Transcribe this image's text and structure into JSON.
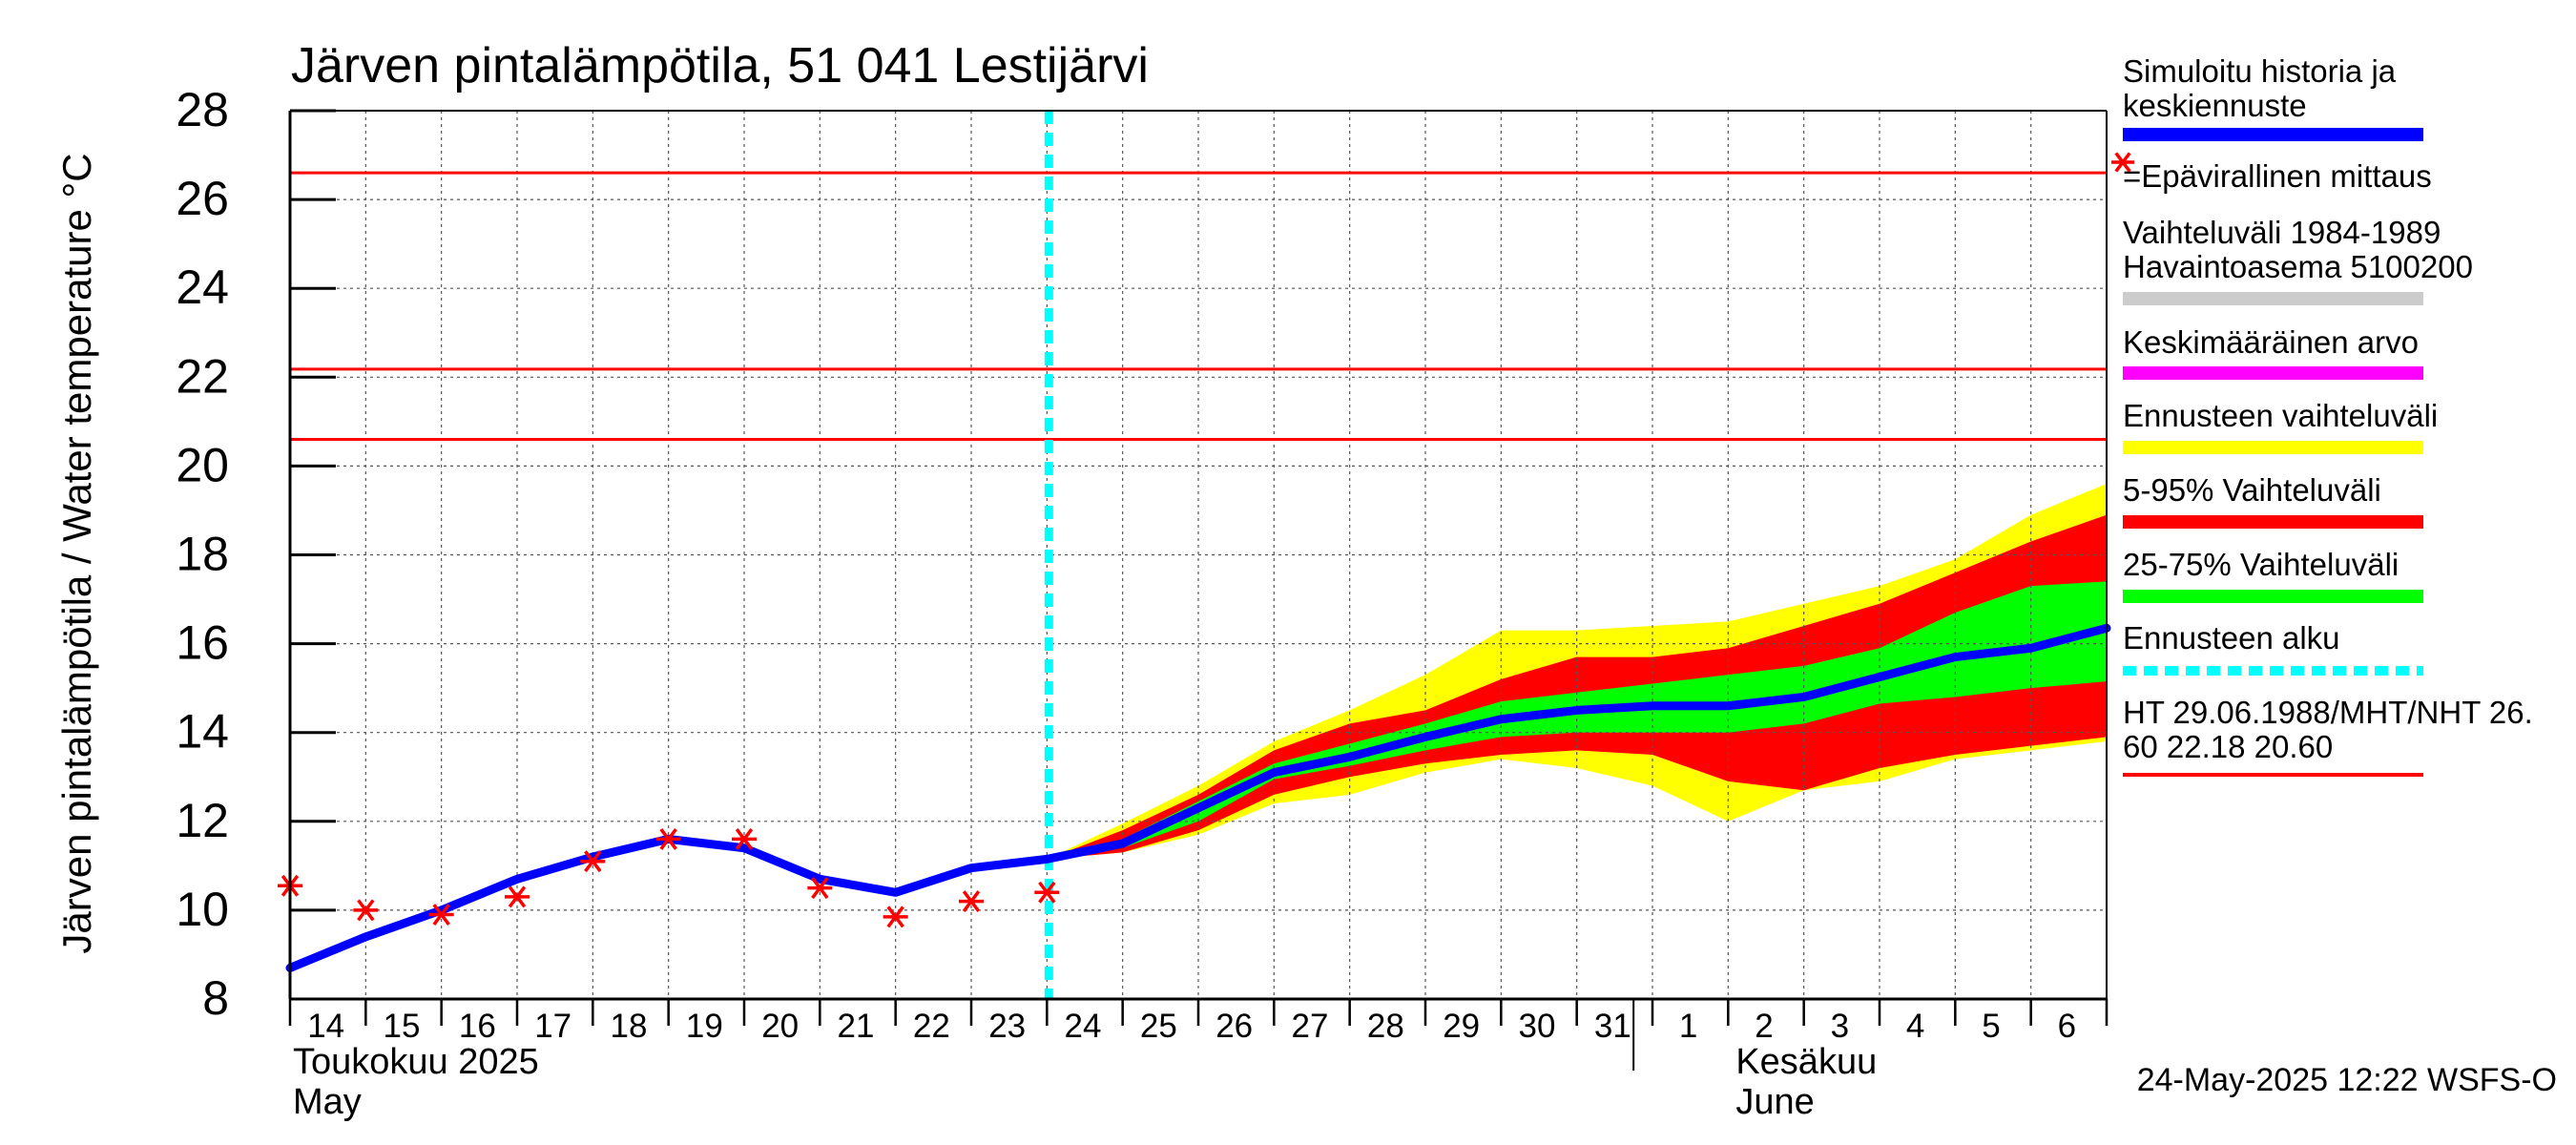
{
  "chart_data": {
    "type": "area",
    "title": "Järven pintalämpötila, 51 041 Lestijärvi",
    "ylabel": "Järven pintalämpötila / Water temperature °C",
    "ylim": [
      8,
      28
    ],
    "yticks": [
      8,
      10,
      12,
      14,
      16,
      18,
      20,
      22,
      24,
      26,
      28
    ],
    "xlim": [
      "2025-05-14",
      "2025-06-07"
    ],
    "x_tick_labels": [
      "14",
      "15",
      "16",
      "17",
      "18",
      "19",
      "20",
      "21",
      "22",
      "23",
      "24",
      "25",
      "26",
      "27",
      "28",
      "29",
      "30",
      "31",
      "1",
      "2",
      "3",
      "4",
      "5",
      "6"
    ],
    "month_labels": [
      {
        "line1": "Toukokuu  2025",
        "line2": "May",
        "date": "2025-05-14"
      },
      {
        "line1": "Kesäkuu",
        "line2": "June",
        "date": "2025-06-02"
      }
    ],
    "grid": true,
    "forecast_start": "2025-05-24",
    "horizontal_lines": [
      {
        "value": 26.6,
        "color": "#ff0000"
      },
      {
        "value": 22.18,
        "color": "#ff0000"
      },
      {
        "value": 20.6,
        "color": "#ff0000"
      }
    ],
    "observations": [
      {
        "date": "2025-05-14",
        "value": 10.55
      },
      {
        "date": "2025-05-15",
        "value": 10.0
      },
      {
        "date": "2025-05-16",
        "value": 9.9
      },
      {
        "date": "2025-05-17",
        "value": 10.3
      },
      {
        "date": "2025-05-18",
        "value": 11.1
      },
      {
        "date": "2025-05-19",
        "value": 11.6
      },
      {
        "date": "2025-05-20",
        "value": 11.6
      },
      {
        "date": "2025-05-21",
        "value": 10.5
      },
      {
        "date": "2025-05-22",
        "value": 9.85
      },
      {
        "date": "2025-05-23",
        "value": 10.2
      },
      {
        "date": "2025-05-24",
        "value": 10.4
      }
    ],
    "simulated_median": {
      "x": [
        "2025-05-14",
        "2025-05-15",
        "2025-05-16",
        "2025-05-17",
        "2025-05-18",
        "2025-05-19",
        "2025-05-20",
        "2025-05-21",
        "2025-05-22",
        "2025-05-23",
        "2025-05-24",
        "2025-05-25",
        "2025-05-26",
        "2025-05-27",
        "2025-05-28",
        "2025-05-29",
        "2025-05-30",
        "2025-05-31",
        "2025-06-01",
        "2025-06-02",
        "2025-06-03",
        "2025-06-04",
        "2025-06-05",
        "2025-06-06",
        "2025-06-07"
      ],
      "values": [
        8.7,
        9.4,
        10.0,
        10.7,
        11.2,
        11.6,
        11.4,
        10.7,
        10.4,
        10.95,
        11.15,
        11.5,
        12.3,
        13.1,
        13.45,
        13.9,
        14.3,
        14.5,
        14.6,
        14.6,
        14.8,
        15.25,
        15.7,
        15.9,
        16.35
      ]
    },
    "forecast_bands": {
      "x": [
        "2025-05-24",
        "2025-05-25",
        "2025-05-26",
        "2025-05-27",
        "2025-05-28",
        "2025-05-29",
        "2025-05-30",
        "2025-05-31",
        "2025-06-01",
        "2025-06-02",
        "2025-06-03",
        "2025-06-04",
        "2025-06-05",
        "2025-06-06",
        "2025-06-07"
      ],
      "range_low": [
        11.15,
        11.3,
        11.7,
        12.4,
        12.6,
        13.1,
        13.4,
        13.2,
        12.8,
        12.0,
        12.7,
        12.9,
        13.4,
        13.6,
        13.8
      ],
      "range_high": [
        11.15,
        11.95,
        12.8,
        13.8,
        14.5,
        15.3,
        16.3,
        16.3,
        16.4,
        16.5,
        16.9,
        17.3,
        17.9,
        18.9,
        19.6
      ],
      "p5": [
        11.15,
        11.3,
        11.8,
        12.6,
        13.0,
        13.3,
        13.5,
        13.6,
        13.5,
        12.9,
        12.7,
        13.2,
        13.5,
        13.7,
        13.9
      ],
      "p95": [
        11.15,
        11.8,
        12.6,
        13.6,
        14.2,
        14.5,
        15.2,
        15.7,
        15.7,
        15.9,
        16.4,
        16.9,
        17.6,
        18.3,
        18.9
      ],
      "p25": [
        11.15,
        11.4,
        12.0,
        12.95,
        13.25,
        13.6,
        13.9,
        14.0,
        14.0,
        14.0,
        14.2,
        14.65,
        14.8,
        15.0,
        15.15
      ],
      "p75": [
        11.15,
        11.6,
        12.45,
        13.3,
        13.75,
        14.2,
        14.7,
        14.9,
        15.1,
        15.3,
        15.5,
        15.9,
        16.7,
        17.3,
        17.4
      ]
    },
    "legend": [
      {
        "label": "Simuloitu historia ja keskiennuste",
        "lines": [
          "Simuloitu historia ja",
          "keskiennuste"
        ],
        "color": "#0000ff",
        "style": "line"
      },
      {
        "label": "=Epävirallinen mittaus",
        "lines": [
          "=Epävirallinen mittaus"
        ],
        "color": "#ff0000",
        "style": "marker"
      },
      {
        "label": "Vaihteluväli 1984-1989 Havaintoasema 5100200",
        "lines": [
          "Vaihteluväli 1984-1989",
          " Havaintoasema 5100200"
        ],
        "color": "#cccccc",
        "style": "line"
      },
      {
        "label": "Keskimääräinen arvo",
        "lines": [
          "Keskimääräinen arvo"
        ],
        "color": "#ff00ff",
        "style": "line"
      },
      {
        "label": "Ennusteen vaihteluväli",
        "lines": [
          "Ennusteen vaihteluväli"
        ],
        "color": "#ffff00",
        "style": "line"
      },
      {
        "label": "5-95% Vaihteluväli",
        "lines": [
          "5-95% Vaihteluväli"
        ],
        "color": "#ff0000",
        "style": "line"
      },
      {
        "label": "25-75% Vaihteluväli",
        "lines": [
          "25-75% Vaihteluväli"
        ],
        "color": "#00ff00",
        "style": "line"
      },
      {
        "label": "Ennusteen alku",
        "lines": [
          "Ennusteen alku"
        ],
        "color": "#00ffff",
        "style": "dashed"
      },
      {
        "label": "HT 29.06.1988/MHT/NHT 26.60 22.18 20.60",
        "lines": [
          "HT 29.06.1988/MHT/NHT 26.",
          "60 22.18 20.60"
        ],
        "color": "#ff0000",
        "style": "line"
      }
    ],
    "legend_position": "right",
    "footer": "24-May-2025 12:22 WSFS-O",
    "colors": {
      "median": "#0000ff",
      "observation": "#ff0000",
      "range": "#ffff00",
      "p5_95": "#ff0000",
      "p25_75": "#00ff00",
      "forecast_line": "#00ffff",
      "reference_lines": "#ff0000"
    }
  }
}
